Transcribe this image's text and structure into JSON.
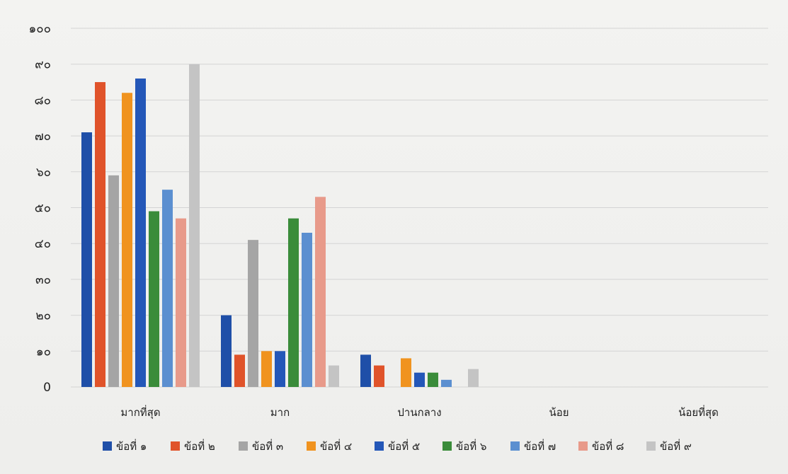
{
  "chart_data": {
    "type": "bar",
    "title": "",
    "xlabel": "",
    "ylabel": "",
    "ylim": [
      0,
      100
    ],
    "yticks": [
      0,
      10,
      20,
      30,
      40,
      50,
      60,
      70,
      80,
      90,
      100
    ],
    "ytick_labels": [
      "0",
      "๑๐",
      "๒๐",
      "๓๐",
      "๔๐",
      "๕๐",
      "๖๐",
      "๗๐",
      "๘๐",
      "๙๐",
      "๑๐๐"
    ],
    "grid": true,
    "legend_position": "bottom",
    "categories": [
      "มากที่สุด",
      "มาก",
      "ปานกลาง",
      "น้อย",
      "น้อยที่สุด"
    ],
    "series": [
      {
        "name": "ข้อที่ ๑",
        "color": "#1f4fa8",
        "values": [
          71,
          20,
          9,
          0,
          0
        ]
      },
      {
        "name": "ข้อที่ ๒",
        "color": "#e0532a",
        "values": [
          85,
          9,
          6,
          0,
          0
        ]
      },
      {
        "name": "ข้อที่ ๓",
        "color": "#a5a5a5",
        "values": [
          59,
          41,
          0,
          0,
          0
        ]
      },
      {
        "name": "ข้อที่ ๔",
        "color": "#f0931f",
        "values": [
          82,
          10,
          8,
          0,
          0
        ]
      },
      {
        "name": "ข้อที่ ๕",
        "color": "#2457b8",
        "values": [
          86,
          10,
          4,
          0,
          0
        ]
      },
      {
        "name": "ข้อที่ ๖",
        "color": "#3a8c3a",
        "values": [
          49,
          47,
          4,
          0,
          0
        ]
      },
      {
        "name": "ข้อที่ ๗",
        "color": "#5b8fd0",
        "values": [
          55,
          43,
          2,
          0,
          0
        ]
      },
      {
        "name": "ข้อที่ ๘",
        "color": "#e89a8a",
        "values": [
          47,
          53,
          0,
          0,
          0
        ]
      },
      {
        "name": "ข้อที่ ๙",
        "color": "#c4c4c4",
        "values": [
          90,
          6,
          5,
          0,
          0
        ]
      }
    ]
  }
}
